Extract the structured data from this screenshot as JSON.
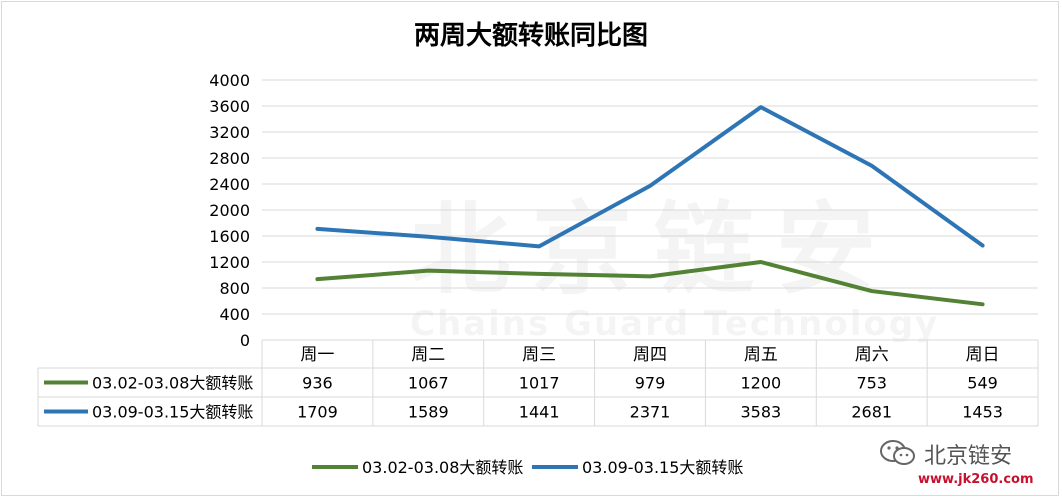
{
  "chart_data": {
    "type": "line",
    "title": "两周大额转账同比图",
    "categories": [
      "周一",
      "周二",
      "周三",
      "周四",
      "周五",
      "周六",
      "周日"
    ],
    "series": [
      {
        "name": "03.02-03.08大额转账",
        "values": [
          936,
          1067,
          1017,
          979,
          1200,
          753,
          549
        ],
        "color": "#548235"
      },
      {
        "name": "03.09-03.15大额转账",
        "values": [
          1709,
          1589,
          1441,
          2371,
          3583,
          2681,
          1453
        ],
        "color": "#2e75b6"
      }
    ],
    "ylim": [
      0,
      4000
    ],
    "yticks": [
      0,
      400,
      800,
      1200,
      1600,
      2000,
      2400,
      2800,
      3200,
      3600,
      4000
    ],
    "grid": true,
    "legend_position": "bottom",
    "data_table": true
  },
  "watermark": {
    "brand": "北京链安",
    "url": "www.jk260.com",
    "background_cn": "北京链安",
    "background_en": "Chains Guard Technology"
  }
}
